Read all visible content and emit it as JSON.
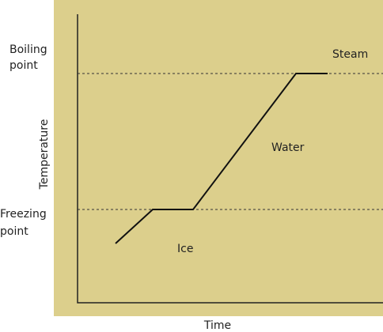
{
  "axes": {
    "y_label": "Temperature",
    "x_label": "Time"
  },
  "levels": [
    {
      "lines": [
        "Boiling",
        "point"
      ]
    },
    {
      "lines": [
        "Freezing",
        "point"
      ]
    }
  ],
  "phases": [
    "Steam",
    "Water",
    "Ice"
  ]
}
